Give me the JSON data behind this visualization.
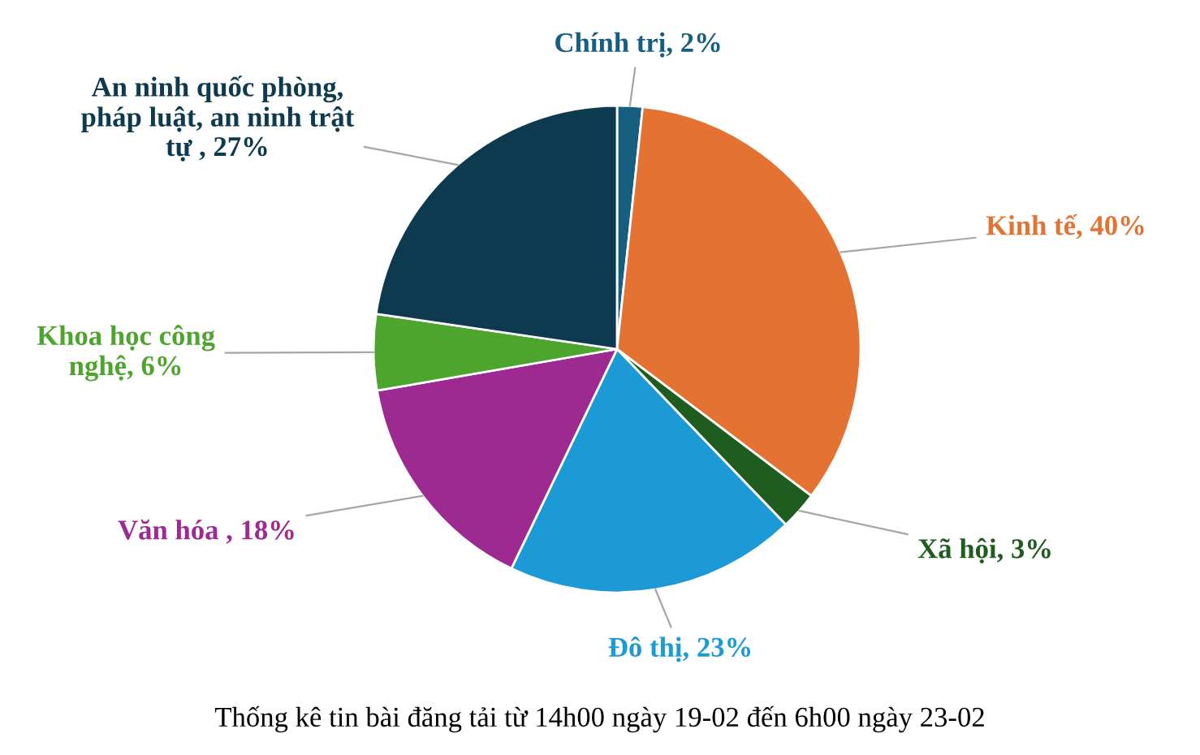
{
  "chart_data": {
    "type": "pie",
    "title": "Thống kê tin bài đăng tải từ 14h00 ngày 19-02 đến 6h00 ngày 23-02",
    "categories": [
      "Chính trị",
      "Kinh tế",
      "Xã hội",
      "Đô thị",
      "Văn hóa ",
      "Khoa học công\nnghệ",
      "An ninh quốc phòng,\npháp luật, an ninh trật\ntự "
    ],
    "values": [
      2,
      40,
      3,
      23,
      18,
      6,
      27
    ],
    "colors": [
      "#175f80",
      "#e47232",
      "#1e5c20",
      "#1b9ad6",
      "#9c2a90",
      "#4ea52e",
      "#0e3a4f"
    ],
    "value_labels": [
      "2%",
      "40%",
      "3%",
      "23%",
      "18%",
      "6%",
      "27%"
    ]
  }
}
